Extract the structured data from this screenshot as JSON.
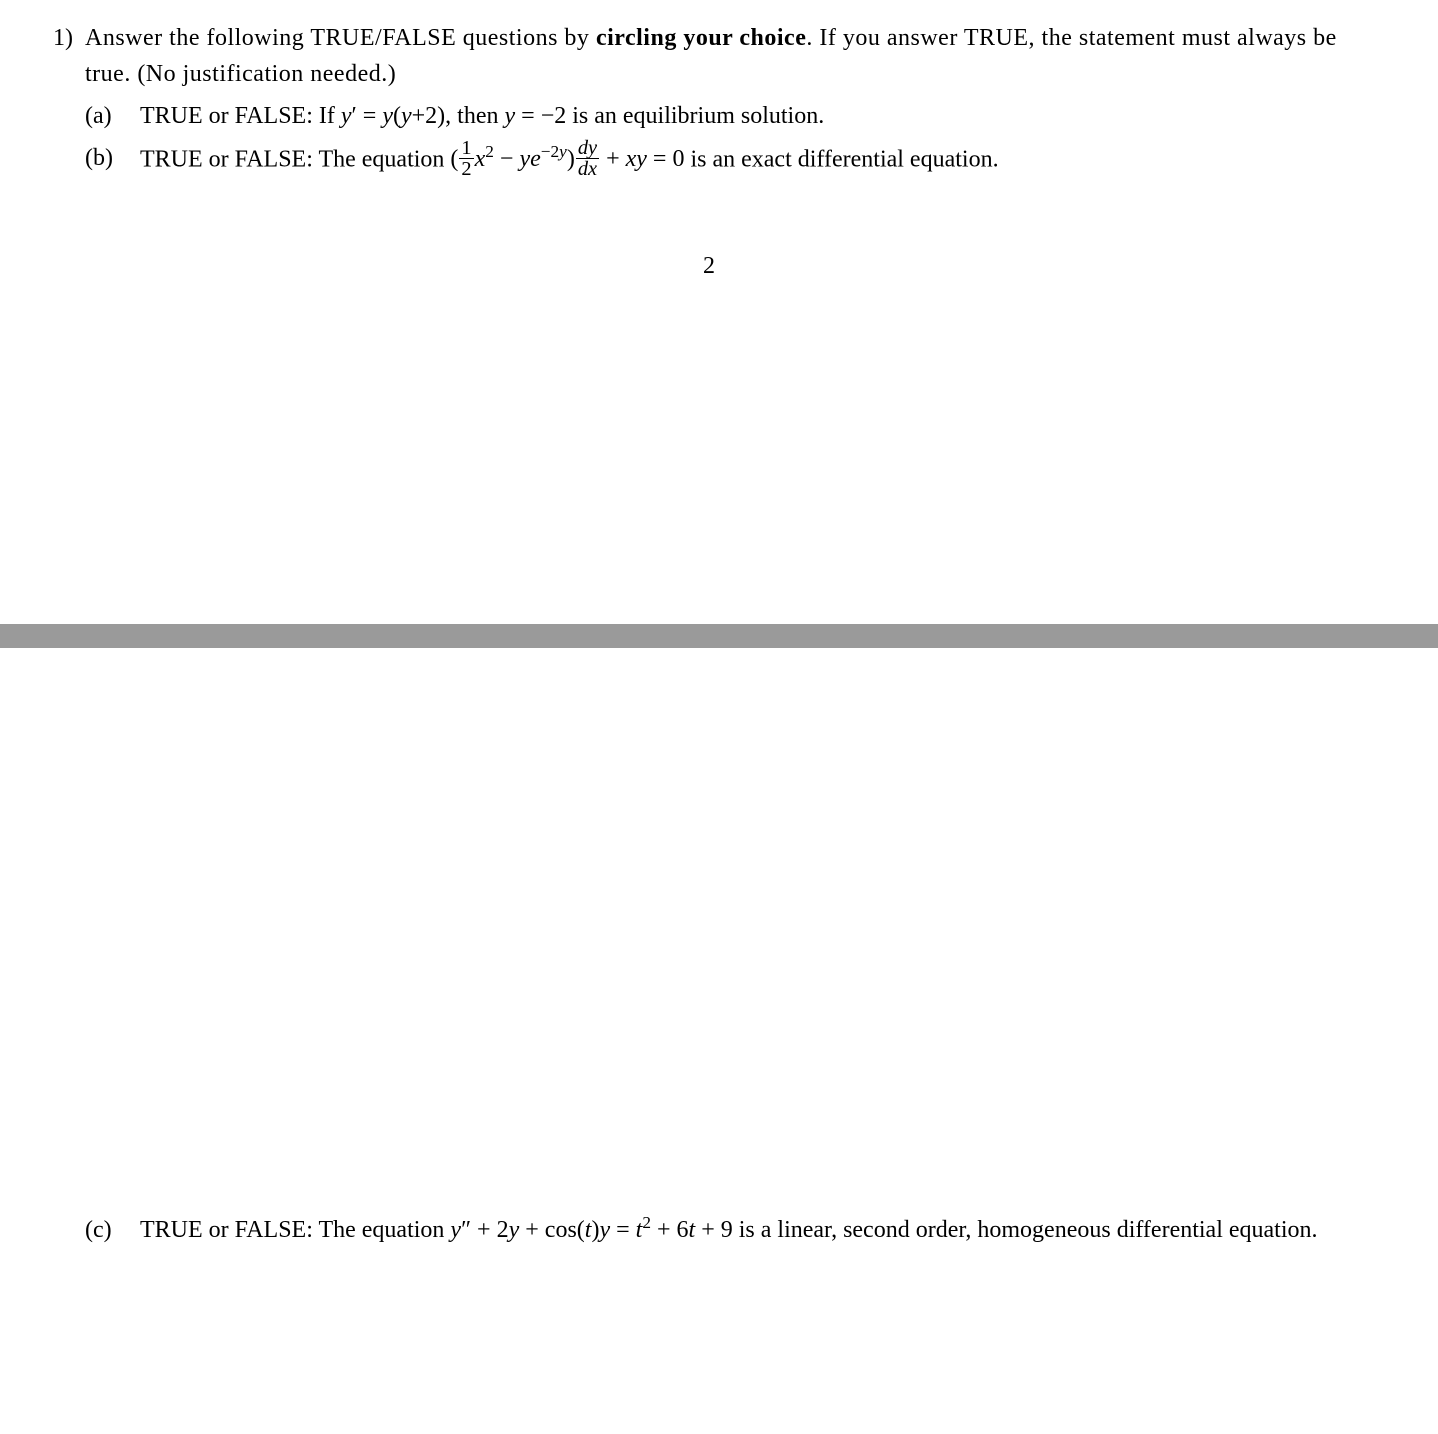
{
  "colors": {
    "text": "#000000",
    "background": "#ffffff",
    "divider": "#9a9a9a"
  },
  "typography": {
    "family": "Times New Roman / Computer Modern -like serif",
    "base_size_pt": 18,
    "line_height": 1.5
  },
  "page_number": "2",
  "problem": {
    "number": "1)",
    "instruction_parts": {
      "lead": "Answer the following TRUE/FALSE questions by ",
      "bold1": "circling your choice",
      "after_bold1": ". If you answer TRUE, the statement must always be true. (No justification needed.)"
    },
    "items": [
      {
        "label": "(a)",
        "prefix": "TRUE or FALSE: If ",
        "math": "y′ = y(y+2)",
        "mid": ", then ",
        "math2": "y = −2",
        "suffix": " is an equilibrium solution."
      },
      {
        "label": "(b)",
        "prefix": "TRUE or FALSE: The equation ",
        "math_desc": "(½x² − y e^{−2y}) dy/dx + xy = 0",
        "suffix": " is an exact differential equation."
      },
      {
        "label": "(c)",
        "prefix": "TRUE or FALSE: The equation ",
        "math_desc": "y″ + 2y + cos(t)y = t² + 6t + 9",
        "suffix": " is a linear, second order, homogeneous differential equation."
      }
    ]
  }
}
